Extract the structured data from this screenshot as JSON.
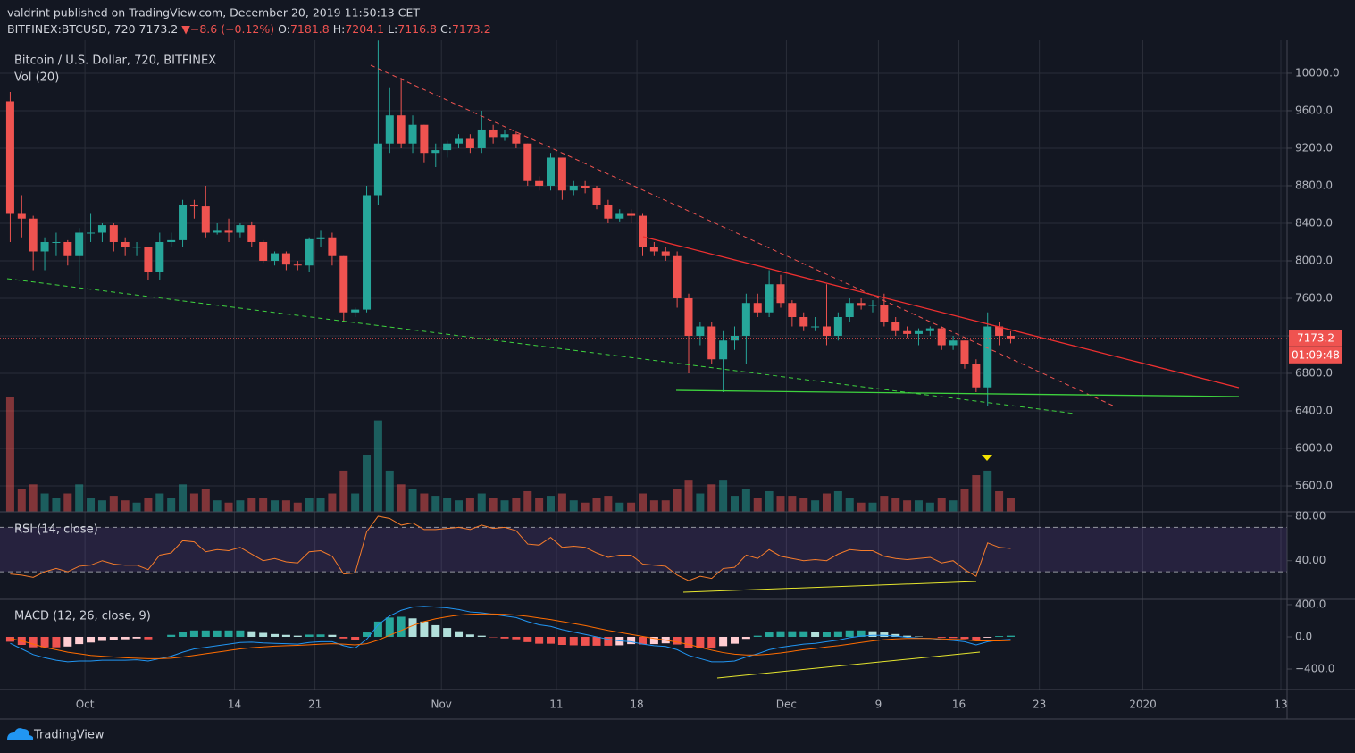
{
  "header": {
    "publisher": "valdrint published on TradingView.com, December 20, 2019 11:50:13 CET",
    "symbol": "BITFINEX:BTCUSD, 720",
    "last": "7173.2",
    "arrow": "▼",
    "change": "−8.6 (−0.12%)",
    "o_label": "O:",
    "open": "7181.8",
    "h_label": "H:",
    "high": "7204.1",
    "l_label": "L:",
    "low": "7116.8",
    "c_label": "C:",
    "close": "7173.2"
  },
  "footer": {
    "brand": "TradingView"
  },
  "chart_data": [
    {
      "type": "candlestick",
      "title": "Bitcoin / U.S. Dollar, 720, BITFINEX",
      "volume_title": "Vol (20)",
      "x": [
        "2019-09-24",
        "2019-09-25",
        "2019-09-26",
        "2019-09-27",
        "2019-09-28",
        "2019-09-29",
        "2019-09-30",
        "2019-10-01",
        "2019-10-02",
        "2019-10-03",
        "2019-10-04",
        "2019-10-05",
        "2019-10-06",
        "2019-10-07",
        "2019-10-08",
        "2019-10-09",
        "2019-10-10",
        "2019-10-11",
        "2019-10-12",
        "2019-10-13",
        "2019-10-14",
        "2019-10-15",
        "2019-10-16",
        "2019-10-17",
        "2019-10-18",
        "2019-10-19",
        "2019-10-20",
        "2019-10-21",
        "2019-10-22",
        "2019-10-23",
        "2019-10-24",
        "2019-10-25",
        "2019-10-26",
        "2019-10-27",
        "2019-10-28",
        "2019-10-29",
        "2019-10-30",
        "2019-10-31",
        "2019-11-01",
        "2019-11-02",
        "2019-11-03",
        "2019-11-04",
        "2019-11-05",
        "2019-11-06",
        "2019-11-07",
        "2019-11-08",
        "2019-11-09",
        "2019-11-10",
        "2019-11-11",
        "2019-11-12",
        "2019-11-13",
        "2019-11-14",
        "2019-11-15",
        "2019-11-16",
        "2019-11-17",
        "2019-11-18",
        "2019-11-19",
        "2019-11-20",
        "2019-11-21",
        "2019-11-22",
        "2019-11-23",
        "2019-11-24",
        "2019-11-25",
        "2019-11-26",
        "2019-11-27",
        "2019-11-28",
        "2019-11-29",
        "2019-11-30",
        "2019-12-01",
        "2019-12-02",
        "2019-12-03",
        "2019-12-04",
        "2019-12-05",
        "2019-12-06",
        "2019-12-07",
        "2019-12-08",
        "2019-12-09",
        "2019-12-10",
        "2019-12-11",
        "2019-12-12",
        "2019-12-13",
        "2019-12-14",
        "2019-12-15",
        "2019-12-16",
        "2019-12-17",
        "2019-12-18",
        "2019-12-19",
        "2019-12-20"
      ],
      "open": [
        9700,
        8500,
        8450,
        8100,
        8200,
        8200,
        8050,
        8300,
        8300,
        8380,
        8200,
        8150,
        8150,
        7880,
        8200,
        8220,
        8600,
        8580,
        8300,
        8320,
        8300,
        8380,
        8200,
        8000,
        8080,
        7960,
        7950,
        8230,
        8250,
        8050,
        7450,
        7480,
        8700,
        9250,
        9550,
        9250,
        9450,
        9150,
        9180,
        9250,
        9300,
        9200,
        9400,
        9320,
        9350,
        9250,
        8850,
        8800,
        9100,
        8750,
        8800,
        8780,
        8600,
        8450,
        8500,
        8480,
        8150,
        8100,
        8050,
        7600,
        7200,
        7300,
        6950,
        7150,
        7200,
        7550,
        7450,
        7750,
        7550,
        7400,
        7300,
        7300,
        7200,
        7400,
        7550,
        7520,
        7530,
        7350,
        7250,
        7220,
        7250,
        7280,
        7100,
        7150,
        6900,
        6650,
        7300,
        7200
      ],
      "high": [
        9800,
        8700,
        8480,
        8250,
        8300,
        8220,
        8350,
        8500,
        8400,
        8400,
        8250,
        8200,
        8150,
        8300,
        8300,
        8650,
        8650,
        8800,
        8400,
        8450,
        8400,
        8420,
        8220,
        8100,
        8100,
        8000,
        8250,
        8320,
        8300,
        8050,
        7500,
        8800,
        10350,
        9850,
        9950,
        9550,
        9450,
        9250,
        9280,
        9350,
        9350,
        9600,
        9450,
        9400,
        9380,
        9250,
        8900,
        9150,
        9100,
        8850,
        8850,
        8800,
        8650,
        8550,
        8550,
        8500,
        8200,
        8150,
        8100,
        7650,
        7350,
        7350,
        7250,
        7300,
        7650,
        7650,
        7900,
        7850,
        7580,
        7450,
        7400,
        7750,
        7450,
        7600,
        7600,
        7580,
        7650,
        7400,
        7300,
        7280,
        7300,
        7300,
        7200,
        7150,
        6950,
        7450,
        7350,
        7250
      ],
      "low": [
        8200,
        8250,
        7900,
        7900,
        8050,
        7950,
        7750,
        8200,
        8200,
        8100,
        8050,
        8050,
        7800,
        7800,
        8150,
        8150,
        8450,
        8250,
        8280,
        8200,
        8250,
        8150,
        7980,
        7950,
        7900,
        7900,
        7880,
        8150,
        7950,
        7350,
        7400,
        7450,
        8600,
        9150,
        9200,
        9150,
        9050,
        9000,
        9100,
        9200,
        9150,
        9150,
        9250,
        9280,
        9200,
        8800,
        8750,
        8750,
        8650,
        8700,
        8720,
        8550,
        8400,
        8420,
        8400,
        8050,
        8050,
        8000,
        7500,
        6800,
        7100,
        6900,
        6600,
        7050,
        6900,
        7400,
        7400,
        7500,
        7300,
        7250,
        7250,
        7100,
        7150,
        7350,
        7480,
        7450,
        7300,
        7200,
        7180,
        7100,
        7200,
        7050,
        7050,
        6850,
        6600,
        6450,
        7100,
        7120
      ],
      "close": [
        8500,
        8450,
        8100,
        8200,
        8200,
        8050,
        8300,
        8300,
        8380,
        8200,
        8150,
        8150,
        7880,
        8200,
        8220,
        8600,
        8580,
        8300,
        8320,
        8300,
        8380,
        8200,
        8000,
        8080,
        7960,
        7950,
        8230,
        8250,
        8050,
        7450,
        7480,
        8700,
        9250,
        9550,
        9250,
        9450,
        9150,
        9180,
        9250,
        9300,
        9200,
        9400,
        9320,
        9350,
        9250,
        8850,
        8800,
        9100,
        8750,
        8800,
        8780,
        8600,
        8450,
        8500,
        8480,
        8150,
        8100,
        8050,
        7600,
        7200,
        7300,
        6950,
        7150,
        7200,
        7550,
        7450,
        7750,
        7550,
        7400,
        7300,
        7300,
        7200,
        7400,
        7550,
        7520,
        7530,
        7350,
        7250,
        7220,
        7250,
        7280,
        7100,
        7150,
        6900,
        6650,
        7300,
        7200,
        7173.2
      ],
      "volume": [
        50,
        10,
        12,
        8,
        6,
        8,
        12,
        6,
        5,
        7,
        5,
        4,
        6,
        8,
        6,
        12,
        8,
        10,
        5,
        4,
        5,
        6,
        6,
        5,
        5,
        4,
        6,
        6,
        8,
        18,
        8,
        25,
        40,
        18,
        12,
        10,
        8,
        7,
        6,
        5,
        6,
        8,
        6,
        5,
        6,
        9,
        6,
        7,
        8,
        5,
        4,
        6,
        7,
        4,
        4,
        8,
        5,
        5,
        10,
        14,
        8,
        12,
        14,
        7,
        10,
        6,
        9,
        7,
        7,
        6,
        5,
        8,
        9,
        6,
        4,
        4,
        7,
        6,
        5,
        5,
        4,
        6,
        5,
        10,
        16,
        18,
        9,
        6
      ],
      "up_color": "#26a69a",
      "down_color": "#ef5350",
      "ylim": [
        5324,
        10352
      ],
      "yticks": [
        {
          "value": 5600,
          "label": "5600.0"
        },
        {
          "value": 6000,
          "label": "6000.0"
        },
        {
          "value": 6400,
          "label": "6400.0"
        },
        {
          "value": 6800,
          "label": "6800.0"
        },
        {
          "value": 7200,
          "label": "7200.0"
        },
        {
          "value": 7600,
          "label": "7600.0"
        },
        {
          "value": 8000,
          "label": "8000.0"
        },
        {
          "value": 8400,
          "label": "8400.0"
        },
        {
          "value": 8800,
          "label": "8800.0"
        },
        {
          "value": 9200,
          "label": "9200.0"
        },
        {
          "value": 9600,
          "label": "9600.0"
        },
        {
          "value": 10000,
          "label": "10000.0"
        }
      ],
      "xlim": [
        "2019-09-24",
        "2020-01-13"
      ],
      "xticks": [
        {
          "value": "2019-10-01",
          "label": "Oct"
        },
        {
          "value": "2019-10-14",
          "label": "14"
        },
        {
          "value": "2019-10-21",
          "label": "21"
        },
        {
          "value": "2019-11-01",
          "label": "Nov"
        },
        {
          "value": "2019-11-11",
          "label": "11"
        },
        {
          "value": "2019-11-18",
          "label": "18"
        },
        {
          "value": "2019-12-01",
          "label": "Dec"
        },
        {
          "value": "2019-12-09",
          "label": "9"
        },
        {
          "value": "2019-12-16",
          "label": "16"
        },
        {
          "value": "2019-12-23",
          "label": "23"
        },
        {
          "value": "2020-01-01",
          "label": "2020"
        },
        {
          "value": "2020-01-13",
          "label": "13"
        }
      ],
      "last_price": 7173.2,
      "countdown": "01:09:48",
      "grid": true
    },
    {
      "type": "line",
      "title": "RSI (14, close)",
      "color": "#f57c2b",
      "values": [
        28,
        27,
        25,
        30,
        33,
        30,
        35,
        36,
        40,
        37,
        36,
        36,
        32,
        45,
        47,
        58,
        57,
        48,
        50,
        49,
        52,
        46,
        40,
        42,
        39,
        38,
        48,
        49,
        44,
        28,
        29,
        66,
        80,
        78,
        72,
        74,
        68,
        68,
        69,
        70,
        68,
        72,
        69,
        70,
        67,
        55,
        54,
        61,
        52,
        53,
        52,
        47,
        43,
        45,
        45,
        37,
        36,
        35,
        27,
        22,
        26,
        24,
        33,
        34,
        45,
        42,
        50,
        44,
        42,
        40,
        41,
        40,
        46,
        50,
        49,
        49,
        44,
        42,
        41,
        42,
        43,
        38,
        40,
        32,
        26,
        56,
        52,
        51
      ],
      "bands": [
        30,
        70
      ],
      "ylim": [
        6,
        84
      ],
      "yticks": [
        {
          "value": 40,
          "label": "40.00"
        },
        {
          "value": 80,
          "label": "80.00"
        }
      ]
    },
    {
      "type": "macd",
      "title": "MACD (12, 26, close, 9)",
      "macd_color": "#2196f3",
      "signal_color": "#ff6d00",
      "macd": [
        -80,
        -150,
        -220,
        -260,
        -290,
        -310,
        -300,
        -300,
        -290,
        -290,
        -290,
        -285,
        -300,
        -270,
        -240,
        -190,
        -150,
        -130,
        -110,
        -90,
        -70,
        -65,
        -75,
        -80,
        -85,
        -90,
        -70,
        -60,
        -60,
        -110,
        -140,
        -30,
        150,
        260,
        330,
        370,
        380,
        370,
        360,
        340,
        310,
        300,
        280,
        260,
        240,
        190,
        150,
        130,
        90,
        60,
        30,
        0,
        -30,
        -50,
        -60,
        -90,
        -110,
        -120,
        -160,
        -230,
        -270,
        -310,
        -310,
        -300,
        -250,
        -210,
        -160,
        -130,
        -110,
        -90,
        -80,
        -60,
        -40,
        -10,
        10,
        20,
        20,
        10,
        -5,
        -15,
        -20,
        -35,
        -45,
        -60,
        -100,
        -60,
        -40,
        -30
      ],
      "signal": [
        -20,
        -50,
        -90,
        -130,
        -160,
        -190,
        -210,
        -230,
        -240,
        -250,
        -260,
        -265,
        -270,
        -270,
        -265,
        -250,
        -230,
        -210,
        -190,
        -170,
        -150,
        -135,
        -125,
        -115,
        -110,
        -105,
        -98,
        -90,
        -85,
        -90,
        -100,
        -85,
        -40,
        20,
        80,
        140,
        190,
        225,
        250,
        270,
        280,
        285,
        285,
        280,
        270,
        255,
        235,
        215,
        190,
        165,
        140,
        110,
        80,
        55,
        30,
        5,
        -20,
        -40,
        -65,
        -95,
        -130,
        -165,
        -195,
        -215,
        -225,
        -225,
        -215,
        -200,
        -180,
        -160,
        -145,
        -125,
        -110,
        -90,
        -70,
        -50,
        -35,
        -25,
        -20,
        -20,
        -20,
        -25,
        -30,
        -35,
        -50,
        -50,
        -50,
        -45
      ],
      "hist": [
        -60,
        -100,
        -130,
        -130,
        -130,
        -120,
        -90,
        -70,
        -50,
        -40,
        -30,
        -20,
        -30,
        0,
        25,
        60,
        80,
        80,
        80,
        80,
        80,
        70,
        50,
        35,
        25,
        15,
        28,
        30,
        25,
        -20,
        -40,
        55,
        190,
        240,
        250,
        230,
        190,
        145,
        110,
        70,
        30,
        15,
        -5,
        -20,
        -30,
        -65,
        -85,
        -85,
        -100,
        -105,
        -110,
        -110,
        -110,
        -105,
        -90,
        -95,
        -90,
        -80,
        -95,
        -135,
        -140,
        -145,
        -115,
        -85,
        -25,
        15,
        55,
        70,
        70,
        70,
        65,
        65,
        70,
        80,
        80,
        70,
        55,
        35,
        15,
        5,
        0,
        -10,
        -15,
        -25,
        -50,
        -10,
        10,
        15
      ],
      "ylim": [
        -655,
        455
      ],
      "yticks": [
        {
          "value": -400,
          "label": "−400.0"
        },
        {
          "value": 0,
          "label": "0.0"
        },
        {
          "value": 400,
          "label": "400.0"
        }
      ]
    }
  ]
}
